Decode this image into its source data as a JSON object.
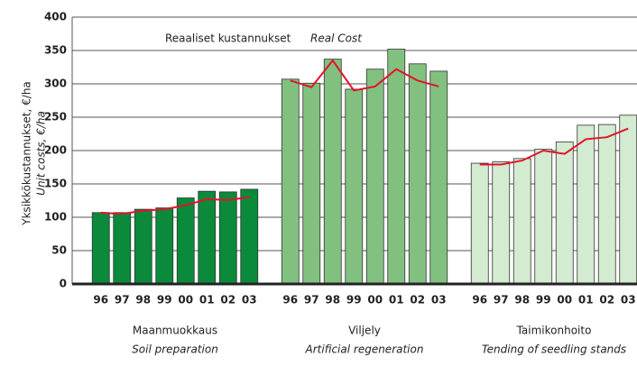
{
  "chart_data": {
    "type": "bar",
    "categories": [
      "96",
      "97",
      "98",
      "99",
      "00",
      "01",
      "02",
      "03"
    ],
    "ylim": [
      0,
      400
    ],
    "yticks": [
      0,
      50,
      100,
      150,
      200,
      250,
      300,
      350,
      400
    ],
    "grid": true,
    "ylabel": "Yksikkökustannukset, €/ha",
    "ylabel_en": "Unit costs, €/ha",
    "line_name": "Reaaliset kustannukset",
    "line_name_en": "Real Cost",
    "line_color": "#e0142a",
    "groups": [
      {
        "label": "Maanmuokkaus",
        "label_en": "Soil preparation",
        "color": "#0a8a3a",
        "values": [
          107,
          107,
          112,
          114,
          129,
          139,
          138,
          142
        ],
        "real_cost": [
          107,
          105,
          110,
          112,
          118,
          127,
          126,
          130
        ]
      },
      {
        "label": "Viljely",
        "label_en": "Artificial regeneration",
        "color": "#82c080",
        "values": [
          307,
          301,
          337,
          292,
          322,
          352,
          330,
          319
        ],
        "real_cost": [
          305,
          295,
          335,
          290,
          296,
          322,
          305,
          296
        ]
      },
      {
        "label": "Taimikonhoito",
        "label_en": "Tending of seedling stands",
        "color": "#d3ebd0",
        "values": [
          181,
          183,
          188,
          202,
          213,
          238,
          239,
          253
        ],
        "real_cost": [
          179,
          179,
          185,
          200,
          195,
          217,
          220,
          233
        ]
      }
    ]
  }
}
